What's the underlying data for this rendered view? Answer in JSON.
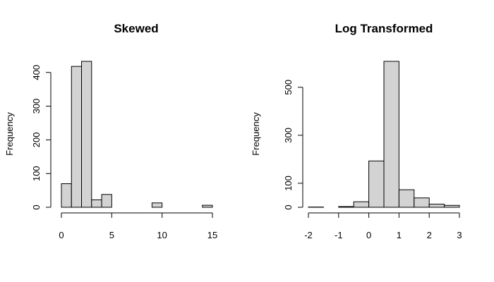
{
  "colors": {
    "bar_fill": "#d3d3d3",
    "bar_stroke": "#000000",
    "background": "#ffffff"
  },
  "chart_data": [
    {
      "type": "bar",
      "title": "Skewed",
      "xlabel": "",
      "ylabel": "Frequency",
      "bins": [
        [
          0,
          1
        ],
        [
          1,
          2
        ],
        [
          2,
          3
        ],
        [
          3,
          4
        ],
        [
          4,
          5
        ],
        [
          5,
          6
        ],
        [
          6,
          7
        ],
        [
          7,
          8
        ],
        [
          8,
          9
        ],
        [
          9,
          10
        ],
        [
          10,
          11
        ],
        [
          11,
          12
        ],
        [
          12,
          13
        ],
        [
          13,
          14
        ],
        [
          14,
          15
        ]
      ],
      "values": [
        70,
        418,
        433,
        22,
        38,
        0,
        0,
        0,
        0,
        13,
        0,
        0,
        0,
        0,
        6
      ],
      "xticks": [
        0,
        5,
        10,
        15
      ],
      "yticks": [
        0,
        100,
        200,
        300,
        400
      ],
      "xlim": [
        0,
        15
      ],
      "ylim": [
        0,
        433
      ],
      "grid": false
    },
    {
      "type": "bar",
      "title": "Log Transformed",
      "xlabel": "",
      "ylabel": "Frequency",
      "bins": [
        [
          -2,
          -1.5
        ],
        [
          -1.5,
          -1
        ],
        [
          -1,
          -0.5
        ],
        [
          -0.5,
          0
        ],
        [
          0,
          0.5
        ],
        [
          0.5,
          1
        ],
        [
          1,
          1.5
        ],
        [
          1.5,
          2
        ],
        [
          2,
          2.5
        ],
        [
          2.5,
          3
        ]
      ],
      "values": [
        1,
        0,
        3,
        23,
        193,
        608,
        73,
        39,
        13,
        8
      ],
      "xticks": [
        -2,
        -1,
        0,
        1,
        2,
        3
      ],
      "yticks": [
        0,
        100,
        300,
        500
      ],
      "xlim": [
        -2,
        3
      ],
      "ylim": [
        0,
        608
      ],
      "grid": false
    }
  ]
}
